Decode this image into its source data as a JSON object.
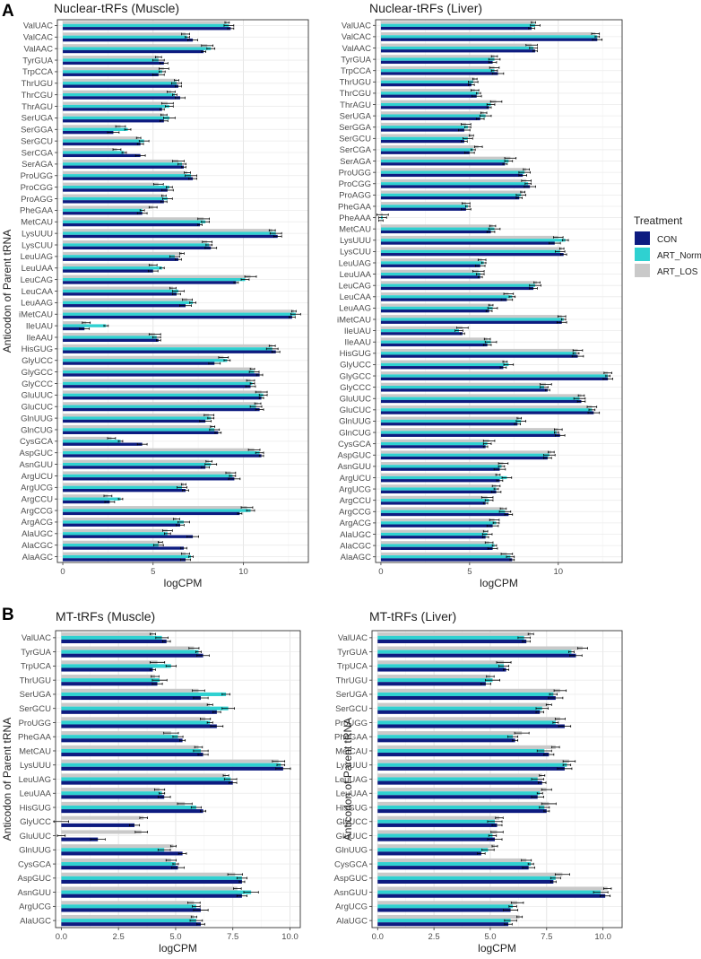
{
  "panel_labels": {
    "a": "A",
    "b": "B"
  },
  "legend": {
    "title": "Treatment",
    "items": [
      {
        "key": "CON",
        "label": "CON",
        "color": "#0d1b80"
      },
      {
        "key": "ART_Norm",
        "label": "ART_Norm",
        "color": "#2fd1d1"
      },
      {
        "key": "ART_LOS",
        "label": "ART_LOS",
        "color": "#c9c9c9"
      }
    ]
  },
  "chart_data": [
    {
      "id": "nuc-muscle",
      "type": "bar",
      "orientation": "horizontal",
      "title": "Nuclear-tRFs (Muscle)",
      "xlabel": "logCPM",
      "ylabel": "Anticodon of Parent tRNA",
      "xlim": [
        -0.3,
        13.6
      ],
      "xticks": [
        0,
        5,
        10
      ],
      "xtick_labels": [
        "0",
        "5",
        "10"
      ],
      "grid": true,
      "categories": [
        "ValUAC",
        "ValCAC",
        "ValAAC",
        "TyrGUA",
        "TrpCCA",
        "ThrUGU",
        "ThrCGU",
        "ThrAGU",
        "SerUGA",
        "SerGGA",
        "SerGCU",
        "SerCGA",
        "SerAGA",
        "ProUGG",
        "ProCGG",
        "ProAGG",
        "PheGAA",
        "MetCAU",
        "LysUUU",
        "LysCUU",
        "LeuUAG",
        "LeuUAA",
        "LeuCAG",
        "LeuCAA",
        "LeuAAG",
        "iMetCAU",
        "IleUAU",
        "IleAAU",
        "HisGUG",
        "GlyUCC",
        "GlyGCC",
        "GlyCCC",
        "GluUUC",
        "GluCUC",
        "GlnUUG",
        "GlnCUG",
        "CysGCA",
        "AspGUC",
        "AsnGUU",
        "ArgUCU",
        "ArgUCG",
        "ArgCCU",
        "ArgCCG",
        "ArgACG",
        "AlaUGC",
        "AlaCGC",
        "AlaAGC"
      ],
      "series": [
        {
          "name": "ART_LOS",
          "values": [
            9.1,
            6.8,
            8.0,
            5.3,
            5.6,
            6.3,
            6.0,
            5.8,
            5.6,
            3.2,
            4.2,
            3.0,
            6.4,
            6.9,
            5.3,
            5.6,
            5.0,
            7.8,
            11.6,
            8.0,
            6.6,
            5.0,
            10.4,
            6.1,
            6.9,
            12.8,
            1.3,
            5.1,
            11.6,
            8.9,
            10.5,
            10.4,
            11.0,
            10.8,
            8.1,
            8.3,
            2.7,
            10.6,
            8.1,
            9.3,
            6.7,
            2.5,
            10.2,
            6.3,
            5.8,
            5.4,
            6.8
          ]
        },
        {
          "name": "ART_Norm",
          "values": [
            9.2,
            6.9,
            8.2,
            5.3,
            5.5,
            6.3,
            6.2,
            5.9,
            5.9,
            3.6,
            4.5,
            3.4,
            6.6,
            7.1,
            5.9,
            5.8,
            4.4,
            7.9,
            11.8,
            8.1,
            6.2,
            5.5,
            10.1,
            6.4,
            7.2,
            12.9,
            2.4,
            5.2,
            11.6,
            9.1,
            10.6,
            10.5,
            11.1,
            10.7,
            8.2,
            8.4,
            3.2,
            10.9,
            8.2,
            9.4,
            6.6,
            3.2,
            10.4,
            6.7,
            5.8,
            5.3,
            7.1
          ]
        },
        {
          "name": "CON",
          "values": [
            9.3,
            7.2,
            7.8,
            5.6,
            5.3,
            6.4,
            6.5,
            5.5,
            5.6,
            2.8,
            4.3,
            4.3,
            6.7,
            7.2,
            5.8,
            5.6,
            4.4,
            7.6,
            11.9,
            8.2,
            6.4,
            5.0,
            9.6,
            6.3,
            6.8,
            12.7,
            1.2,
            5.3,
            11.8,
            8.4,
            10.9,
            10.4,
            11.0,
            10.9,
            7.9,
            8.6,
            4.4,
            11.0,
            7.9,
            9.5,
            6.8,
            2.6,
            9.8,
            6.5,
            7.2,
            6.7,
            6.8
          ]
        }
      ]
    },
    {
      "id": "nuc-liver",
      "type": "bar",
      "orientation": "horizontal",
      "title": "Nuclear-tRFs (Liver)",
      "xlabel": "logCPM",
      "ylabel": "",
      "xlim": [
        -0.3,
        13.6
      ],
      "xticks": [
        0,
        5,
        10
      ],
      "xtick_labels": [
        "0",
        "5",
        "10"
      ],
      "grid": true,
      "categories": [
        "ValUAC",
        "ValCAC",
        "ValAAC",
        "TyrGUA",
        "TrpCCA",
        "ThrUGU",
        "ThrCGU",
        "ThrAGU",
        "SerUGA",
        "SerGGA",
        "SerGCU",
        "SerCGA",
        "SerAGA",
        "ProUGG",
        "ProCGG",
        "ProAGG",
        "PheGAA",
        "PheAAA",
        "MetCAU",
        "LysUUU",
        "LysCUU",
        "LeuUAG",
        "LeuUAA",
        "LeuCAG",
        "LeuCAA",
        "LeuAAG",
        "iMetCAU",
        "IleUAU",
        "IleAAU",
        "HisGUG",
        "GlyUCC",
        "GlyGCC",
        "GlyCCC",
        "GluUUC",
        "GluCUC",
        "GlnUUG",
        "GlnCUG",
        "CysGCA",
        "AspGUC",
        "AsnGUU",
        "ArgUCU",
        "ArgUCG",
        "ArgCCU",
        "ArgCCG",
        "ArgACG",
        "AlaUGC",
        "AlaCGC",
        "AlaAGC"
      ],
      "series": [
        {
          "name": "ART_LOS",
          "values": [
            8.6,
            12.1,
            8.5,
            6.4,
            6.4,
            5.3,
            5.3,
            6.5,
            5.8,
            4.8,
            5.1,
            5.5,
            7.3,
            8.2,
            8.2,
            8.0,
            4.8,
            0.1,
            6.3,
            10.0,
            10.2,
            5.7,
            5.5,
            8.8,
            7.2,
            6.2,
            10.2,
            4.6,
            6.0,
            11.1,
            7.0,
            12.8,
            9.3,
            11.3,
            11.9,
            7.8,
            10.0,
            6.1,
            9.6,
            6.9,
            6.6,
            6.5,
            6.0,
            6.9,
            6.4,
            5.9,
            6.1,
            7.1
          ]
        },
        {
          "name": "ART_Norm",
          "values": [
            8.7,
            12.2,
            8.6,
            6.4,
            6.4,
            5.2,
            5.5,
            6.2,
            5.9,
            4.9,
            4.9,
            5.2,
            7.2,
            8.1,
            8.3,
            7.9,
            4.9,
            0.1,
            6.4,
            10.4,
            10.1,
            5.8,
            5.6,
            8.7,
            7.4,
            6.3,
            10.3,
            4.4,
            6.2,
            11.0,
            7.2,
            12.8,
            9.2,
            11.2,
            11.9,
            7.9,
            9.9,
            6.0,
            9.5,
            6.8,
            7.1,
            6.5,
            6.1,
            7.0,
            6.5,
            6.0,
            6.4,
            7.3
          ]
        },
        {
          "name": "CON",
          "values": [
            8.5,
            12.2,
            8.7,
            6.3,
            6.6,
            5.1,
            5.4,
            6.1,
            5.6,
            4.7,
            4.7,
            5.0,
            7.0,
            8.0,
            8.4,
            7.8,
            4.8,
            0.0,
            6.2,
            9.8,
            10.3,
            5.6,
            5.6,
            8.6,
            7.1,
            6.1,
            10.2,
            4.6,
            6.0,
            11.1,
            6.9,
            12.8,
            9.4,
            11.3,
            12.0,
            7.7,
            10.1,
            5.9,
            9.4,
            6.7,
            6.7,
            6.5,
            5.9,
            7.2,
            6.3,
            5.9,
            6.3,
            7.4
          ]
        }
      ]
    },
    {
      "id": "mt-muscle",
      "type": "bar",
      "orientation": "horizontal",
      "title": "MT-tRFs (Muscle)",
      "xlabel": "logCPM",
      "ylabel": "Anticodon of Parent tRNA",
      "xlim": [
        -0.25,
        10.45
      ],
      "xticks": [
        0.0,
        2.5,
        5.0,
        7.5,
        10.0
      ],
      "xtick_labels": [
        "0.0",
        "2.5",
        "5.0",
        "7.5",
        "10.0"
      ],
      "grid": true,
      "categories": [
        "ValUAC",
        "TyrGUA",
        "TrpUCA",
        "ThrUGU",
        "SerUGA",
        "SerGCU",
        "ProUGG",
        "PheGAA",
        "MetCAU",
        "LysUUU",
        "LeuUAG",
        "LeuUAA",
        "HisGUG",
        "GlyUCC",
        "GluUUC",
        "GlnUUG",
        "CysGCA",
        "AspGUC",
        "AsnGUU",
        "ArgUCG",
        "AlaUGC"
      ],
      "series": [
        {
          "name": "ART_LOS",
          "values": [
            4.0,
            5.8,
            4.2,
            4.1,
            6.0,
            6.5,
            6.3,
            4.8,
            6.0,
            9.5,
            7.2,
            4.3,
            5.4,
            3.6,
            3.5,
            4.9,
            4.8,
            7.6,
            7.7,
            5.8,
            5.8
          ]
        },
        {
          "name": "ART_Norm",
          "values": [
            4.4,
            6.0,
            4.8,
            4.3,
            7.2,
            7.3,
            6.5,
            5.1,
            6.1,
            9.6,
            7.4,
            4.4,
            5.9,
            0.0,
            0.0,
            4.5,
            5.0,
            7.9,
            8.3,
            5.9,
            5.9
          ]
        },
        {
          "name": "CON",
          "values": [
            4.6,
            6.2,
            4.0,
            4.2,
            6.1,
            6.8,
            6.8,
            5.3,
            6.2,
            9.7,
            7.5,
            4.5,
            6.2,
            3.2,
            1.6,
            5.3,
            5.1,
            7.9,
            7.9,
            6.1,
            6.1
          ]
        }
      ]
    },
    {
      "id": "mt-liver",
      "type": "bar",
      "orientation": "horizontal",
      "title": "MT-tRFs (Liver)",
      "xlabel": "logCPM",
      "ylabel": "Anticodon of Parent tRNA",
      "xlim": [
        -0.25,
        10.85
      ],
      "xticks": [
        0.0,
        2.5,
        5.0,
        7.5,
        10.0
      ],
      "xtick_labels": [
        "0.0",
        "2.5",
        "5.0",
        "7.5",
        "10.0"
      ],
      "grid": true,
      "categories": [
        "ValUAC",
        "TyrGUA",
        "TrpUCA",
        "ThrUGU",
        "SerUGA",
        "SerGCU",
        "ProUGG",
        "PheGAA",
        "MetCAU",
        "LysUUU",
        "LeuUAG",
        "LeuUAA",
        "HisGUG",
        "GlyUCC",
        "GluUUC",
        "GlnUUG",
        "CysGCA",
        "AspGUC",
        "AsnGUU",
        "ArgUCG",
        "AlaUGC"
      ],
      "series": [
        {
          "name": "ART_LOS",
          "values": [
            6.8,
            9.1,
            5.6,
            5.0,
            8.1,
            7.6,
            8.1,
            6.4,
            7.9,
            8.5,
            7.3,
            7.5,
            7.6,
            5.4,
            5.3,
            5.2,
            6.6,
            8.2,
            10.2,
            6.2,
            6.3
          ]
        },
        {
          "name": "ART_Norm",
          "values": [
            6.5,
            8.6,
            5.6,
            5.1,
            7.8,
            7.3,
            7.9,
            6.0,
            7.4,
            8.4,
            7.1,
            7.2,
            7.4,
            5.2,
            5.1,
            4.9,
            6.8,
            7.9,
            9.9,
            6.0,
            5.9
          ]
        },
        {
          "name": "CON",
          "values": [
            6.6,
            8.8,
            5.7,
            4.8,
            7.9,
            7.2,
            8.3,
            6.1,
            7.6,
            8.3,
            7.3,
            7.1,
            7.5,
            5.3,
            5.2,
            4.6,
            6.7,
            7.8,
            10.1,
            5.9,
            5.8
          ]
        }
      ]
    }
  ]
}
